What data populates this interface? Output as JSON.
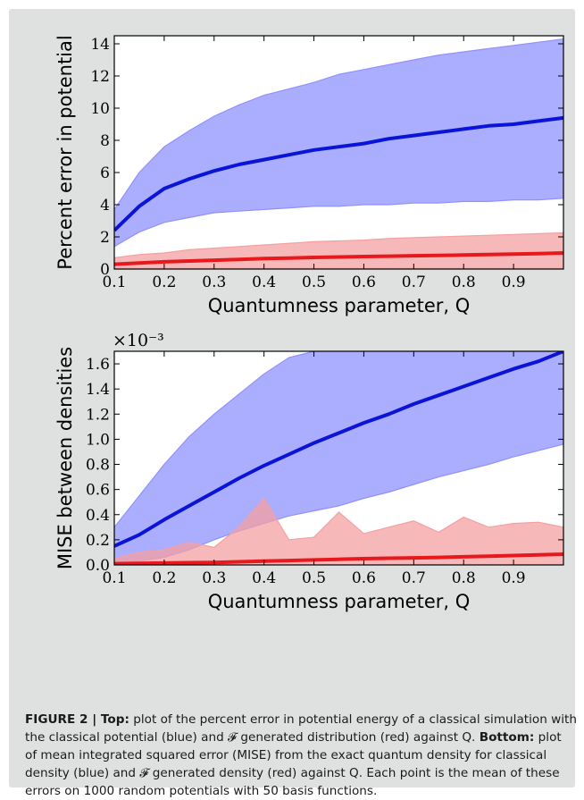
{
  "chart_data": [
    {
      "type": "area",
      "xlabel": "Quantumness parameter, Q",
      "ylabel": "Percent error in potential",
      "xlim": [
        0.1,
        1.0
      ],
      "ylim": [
        0,
        14.5
      ],
      "xticks": [
        "0.1",
        "0.2",
        "0.3",
        "0.4",
        "0.5",
        "0.6",
        "0.7",
        "0.8",
        "0.9"
      ],
      "yticks": [
        "0",
        "2",
        "4",
        "6",
        "8",
        "10",
        "12",
        "14"
      ],
      "x": [
        0.1,
        0.15,
        0.2,
        0.25,
        0.3,
        0.35,
        0.4,
        0.45,
        0.5,
        0.55,
        0.6,
        0.65,
        0.7,
        0.75,
        0.8,
        0.85,
        0.9,
        0.95,
        1.0
      ],
      "series": [
        {
          "color": "#0a14d6",
          "band_color": "#8f91ff",
          "values": [
            2.4,
            3.9,
            5.0,
            5.6,
            6.1,
            6.5,
            6.8,
            7.1,
            7.4,
            7.6,
            7.8,
            8.1,
            8.3,
            8.5,
            8.7,
            8.9,
            9.0,
            9.2,
            9.4
          ],
          "upper": [
            3.7,
            6.0,
            7.6,
            8.6,
            9.5,
            10.2,
            10.8,
            11.2,
            11.6,
            12.1,
            12.4,
            12.7,
            13.0,
            13.3,
            13.5,
            13.7,
            13.9,
            14.1,
            14.3
          ],
          "lower": [
            1.4,
            2.3,
            2.9,
            3.2,
            3.5,
            3.6,
            3.7,
            3.8,
            3.9,
            3.9,
            4.0,
            4.0,
            4.1,
            4.1,
            4.2,
            4.2,
            4.3,
            4.3,
            4.4
          ]
        },
        {
          "color": "#e8191d",
          "band_color": "#f4a0a2",
          "values": [
            0.3,
            0.38,
            0.45,
            0.5,
            0.55,
            0.6,
            0.65,
            0.68,
            0.72,
            0.75,
            0.78,
            0.8,
            0.83,
            0.85,
            0.87,
            0.9,
            0.93,
            0.96,
            1.0
          ],
          "upper": [
            0.7,
            0.9,
            1.0,
            1.2,
            1.3,
            1.4,
            1.5,
            1.6,
            1.7,
            1.75,
            1.8,
            1.9,
            1.95,
            2.0,
            2.05,
            2.1,
            2.15,
            2.2,
            2.25
          ],
          "lower": [
            0.05,
            0.05,
            0.05,
            0.05,
            0.05,
            0.05,
            0.05,
            0.05,
            0.05,
            0.05,
            0.05,
            0.05,
            0.05,
            0.05,
            0.05,
            0.05,
            0.05,
            0.05,
            0.05
          ]
        }
      ]
    },
    {
      "type": "area",
      "xlabel": "Quantumness parameter, Q",
      "ylabel": "MISE between densities",
      "scale_label": "×10⁻³",
      "xlim": [
        0.1,
        1.0
      ],
      "ylim": [
        0,
        1.7
      ],
      "xticks": [
        "0.1",
        "0.2",
        "0.3",
        "0.4",
        "0.5",
        "0.6",
        "0.7",
        "0.8",
        "0.9"
      ],
      "yticks": [
        "0.0",
        "0.2",
        "0.4",
        "0.6",
        "0.8",
        "1.0",
        "1.2",
        "1.4",
        "1.6"
      ],
      "x": [
        0.1,
        0.15,
        0.2,
        0.25,
        0.3,
        0.35,
        0.4,
        0.45,
        0.5,
        0.55,
        0.6,
        0.65,
        0.7,
        0.75,
        0.8,
        0.85,
        0.9,
        0.95,
        1.0
      ],
      "series": [
        {
          "color": "#0a14d6",
          "band_color": "#8f91ff",
          "values": [
            0.15,
            0.24,
            0.36,
            0.47,
            0.58,
            0.69,
            0.79,
            0.88,
            0.97,
            1.05,
            1.13,
            1.2,
            1.28,
            1.35,
            1.42,
            1.49,
            1.56,
            1.62,
            1.7
          ],
          "upper": [
            0.3,
            0.55,
            0.8,
            1.02,
            1.2,
            1.36,
            1.52,
            1.65,
            1.7,
            1.7,
            1.7,
            1.7,
            1.7,
            1.7,
            1.7,
            1.7,
            1.7,
            1.7,
            1.7
          ],
          "lower": [
            0.02,
            0.03,
            0.06,
            0.12,
            0.2,
            0.27,
            0.33,
            0.39,
            0.43,
            0.47,
            0.53,
            0.58,
            0.64,
            0.7,
            0.75,
            0.8,
            0.86,
            0.91,
            0.96
          ]
        },
        {
          "color": "#e8191d",
          "band_color": "#f4a0a2",
          "values": [
            0.01,
            0.012,
            0.015,
            0.018,
            0.02,
            0.025,
            0.03,
            0.035,
            0.04,
            0.045,
            0.05,
            0.053,
            0.056,
            0.06,
            0.065,
            0.07,
            0.075,
            0.08,
            0.085
          ],
          "upper": [
            0.05,
            0.1,
            0.12,
            0.18,
            0.14,
            0.3,
            0.53,
            0.2,
            0.22,
            0.42,
            0.25,
            0.3,
            0.35,
            0.26,
            0.38,
            0.3,
            0.33,
            0.34,
            0.3
          ],
          "lower": [
            0.0,
            0.0,
            0.0,
            0.0,
            0.0,
            0.0,
            0.0,
            0.0,
            0.0,
            0.0,
            0.0,
            0.0,
            0.0,
            0.0,
            0.0,
            0.0,
            0.0,
            0.0,
            0.0
          ]
        }
      ]
    }
  ],
  "caption": {
    "label": "FIGURE 2 | ",
    "top_label": "Top:",
    "top_text": " plot of the percent error in potential energy of a classical simulation with the classical potential (blue) and 𝓕 generated distribution (red) against Q. ",
    "bottom_label": "Bottom:",
    "bottom_text": " plot of mean integrated squared error (MISE) from the exact quantum density for classical density (blue) and 𝓕 generated density (red) against Q. Each point is the mean of these errors on 1000 random potentials with 50 basis functions."
  }
}
